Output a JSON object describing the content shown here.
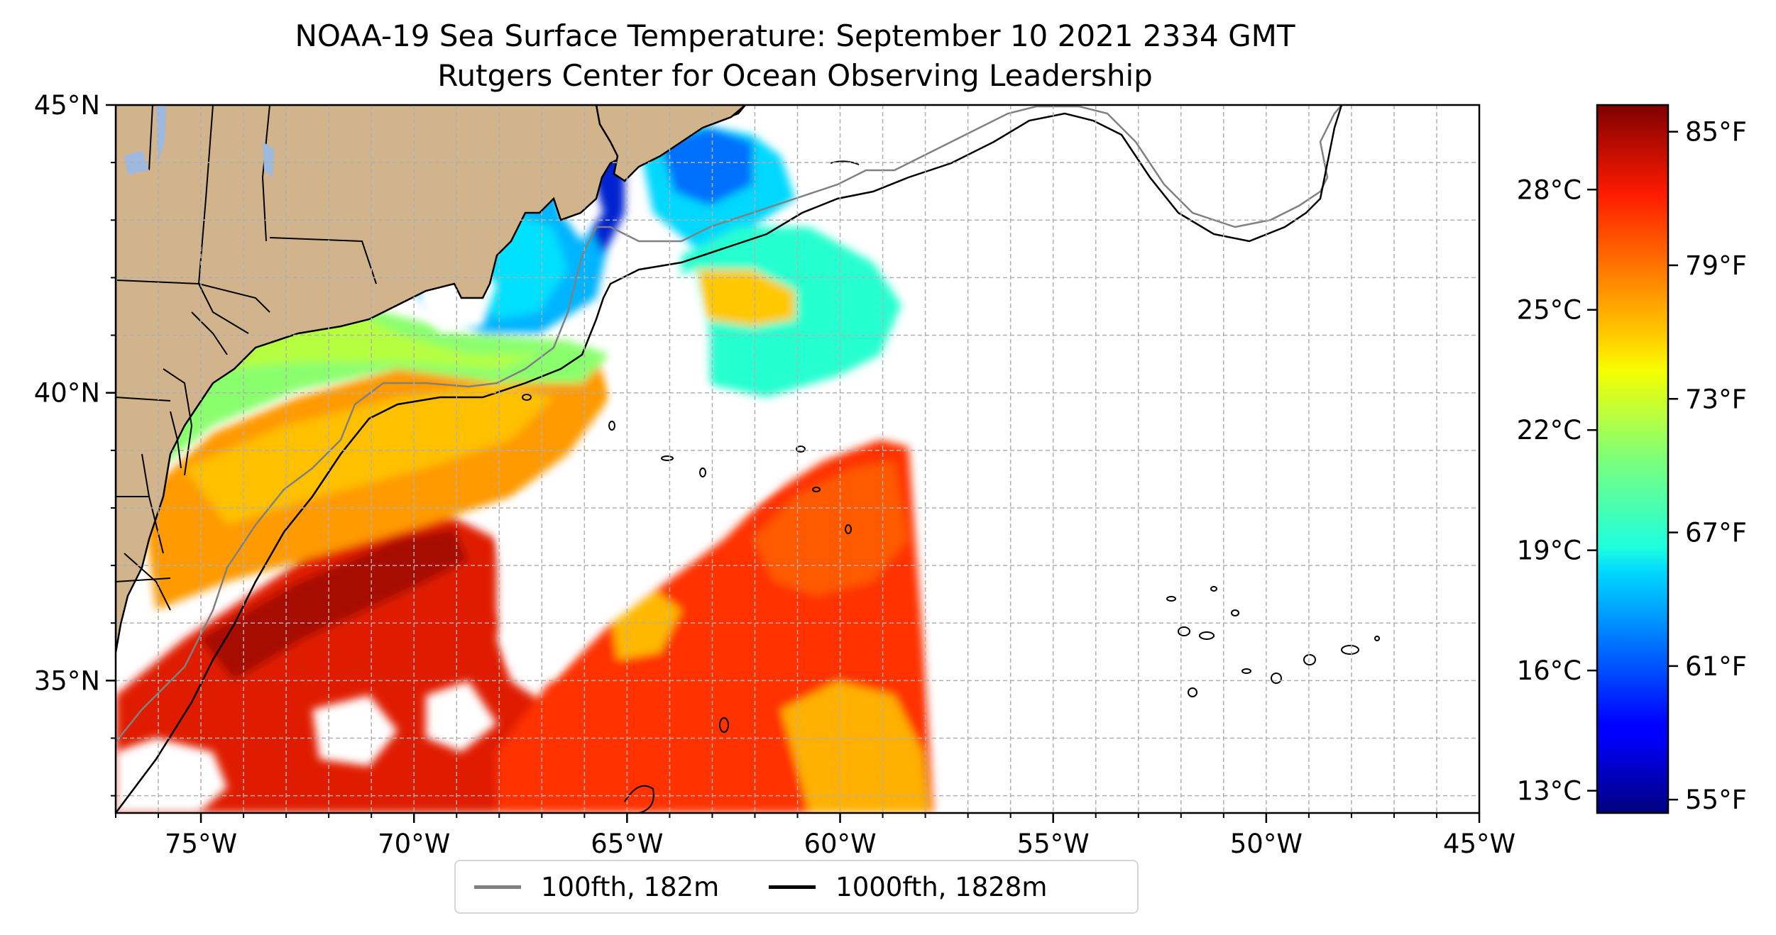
{
  "title": {
    "line1": "NOAA-19 Sea Surface Temperature: September 10 2021 2334 GMT",
    "line2": "Rutgers Center for Ocean Observing Leadership"
  },
  "map": {
    "lon_range": [
      -77,
      -45
    ],
    "lat_range": [
      32.7,
      45
    ],
    "x_ticks": [
      "75°W",
      "70°W",
      "65°W",
      "60°W",
      "55°W",
      "50°W",
      "45°W"
    ],
    "y_ticks": [
      "35°N",
      "40°N",
      "45°N"
    ],
    "grid": true,
    "land_color": "#d2b48c"
  },
  "legend": {
    "placement": "below map",
    "items": [
      {
        "label": "100fth, 182m",
        "color": "#808080"
      },
      {
        "label": "1000fth, 1828m",
        "color": "#000000"
      }
    ]
  },
  "colorbar": {
    "colormap": "jet",
    "celsius_ticks": [
      "28°C",
      "25°C",
      "22°C",
      "19°C",
      "16°C",
      "13°C"
    ],
    "fahrenheit_ticks": [
      "85°F",
      "79°F",
      "73°F",
      "67°F",
      "61°F",
      "55°F"
    ]
  }
}
